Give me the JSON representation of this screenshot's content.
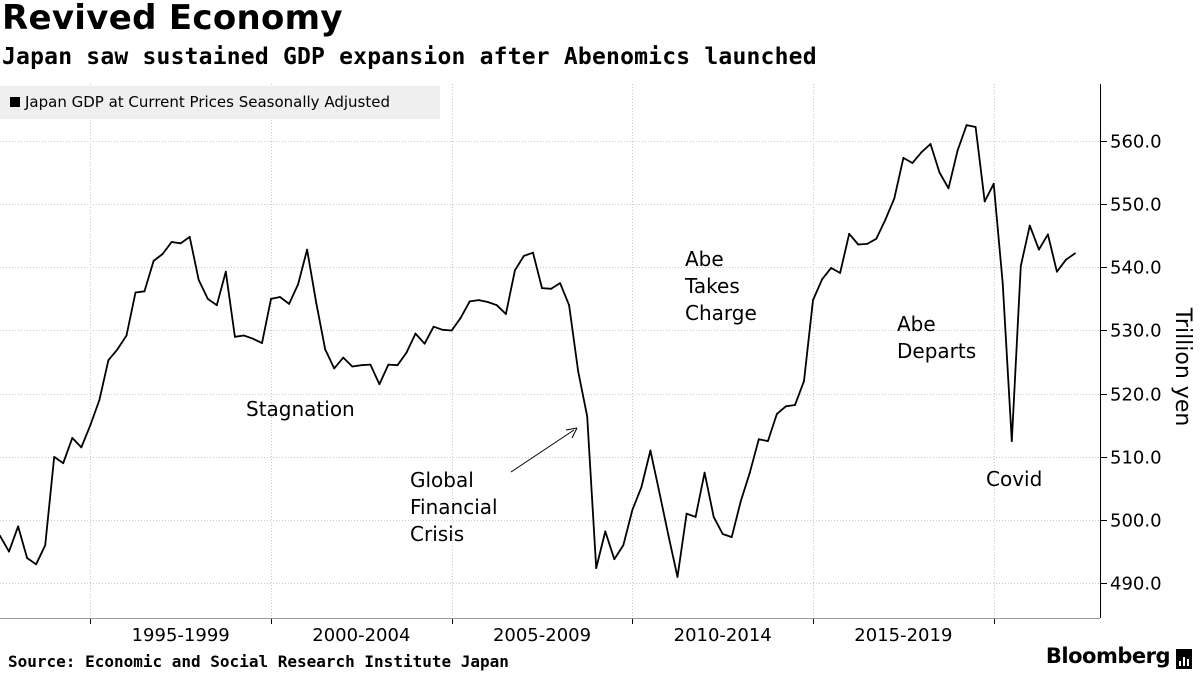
{
  "header": {
    "title": "Revived Economy",
    "subtitle": "Japan saw sustained GDP expansion after Abenomics launched"
  },
  "legend": {
    "label": "Japan GDP at Current Prices Seasonally Adjusted",
    "color": "#000000"
  },
  "footer": {
    "source": "Source: Economic and Social Research Institute Japan",
    "brand": "Bloomberg"
  },
  "chart_data": {
    "type": "line",
    "title": "Revived Economy",
    "subtitle": "Japan saw sustained GDP expansion after Abenomics launched",
    "ylabel": "Trillion yen",
    "xlabel": "",
    "ylim": [
      484.5,
      569.0
    ],
    "xlim": [
      0,
      119
    ],
    "y_ticks": [
      490.0,
      500.0,
      510.0,
      520.0,
      530.0,
      540.0,
      550.0,
      560.0
    ],
    "y_tick_labels": [
      "490.0",
      "500.0",
      "510.0",
      "520.0",
      "530.0",
      "540.0",
      "550.0",
      "560.0"
    ],
    "x_period_labels": [
      {
        "label": "1995-1999",
        "center": 20
      },
      {
        "label": "2000-2004",
        "center": 40
      },
      {
        "label": "2005-2009",
        "center": 60
      },
      {
        "label": "2010-2014",
        "center": 80
      },
      {
        "label": "2015-2019",
        "center": 100
      }
    ],
    "x_boundaries": [
      10,
      30,
      50,
      70,
      90,
      110
    ],
    "grid": true,
    "series": [
      {
        "name": "Japan GDP at Current Prices Seasonally Adjusted",
        "color": "#000000",
        "points": [
          [
            0,
            497.5
          ],
          [
            1,
            495.0
          ],
          [
            2,
            499.0
          ],
          [
            3,
            494.0
          ],
          [
            4,
            493.0
          ],
          [
            5,
            496.0
          ],
          [
            6,
            510.0
          ],
          [
            7,
            509.0
          ],
          [
            8,
            513.0
          ],
          [
            9,
            511.5
          ],
          [
            10,
            515.0
          ],
          [
            11,
            519.0
          ],
          [
            12,
            525.3
          ],
          [
            13,
            527.0
          ],
          [
            14,
            529.2
          ],
          [
            15,
            536.0
          ],
          [
            16,
            536.2
          ],
          [
            17,
            541.0
          ],
          [
            18,
            542.1
          ],
          [
            19,
            544.0
          ],
          [
            20,
            543.8
          ],
          [
            21,
            544.8
          ],
          [
            22,
            538.0
          ],
          [
            23,
            535.0
          ],
          [
            24,
            534.0
          ],
          [
            25,
            539.3
          ],
          [
            26,
            529.0
          ],
          [
            27,
            529.2
          ],
          [
            28,
            528.7
          ],
          [
            29,
            528.0
          ],
          [
            30,
            535.0
          ],
          [
            31,
            535.3
          ],
          [
            32,
            534.2
          ],
          [
            33,
            537.3
          ],
          [
            34,
            542.8
          ],
          [
            35,
            534.4
          ],
          [
            36,
            527.0
          ],
          [
            37,
            524.0
          ],
          [
            38,
            525.7
          ],
          [
            39,
            524.3
          ],
          [
            40,
            524.5
          ],
          [
            41,
            524.6
          ],
          [
            42,
            521.5
          ],
          [
            43,
            524.6
          ],
          [
            44,
            524.5
          ],
          [
            45,
            526.5
          ],
          [
            46,
            529.5
          ],
          [
            47,
            527.9
          ],
          [
            48,
            530.6
          ],
          [
            49,
            530.1
          ],
          [
            50,
            530.0
          ],
          [
            51,
            532.0
          ],
          [
            52,
            534.6
          ],
          [
            53,
            534.8
          ],
          [
            54,
            534.5
          ],
          [
            55,
            534.0
          ],
          [
            56,
            532.6
          ],
          [
            57,
            539.5
          ],
          [
            58,
            541.8
          ],
          [
            59,
            542.3
          ],
          [
            60,
            536.7
          ],
          [
            61,
            536.6
          ],
          [
            62,
            537.5
          ],
          [
            63,
            534.0
          ],
          [
            64,
            523.5
          ],
          [
            65,
            516.4
          ],
          [
            66,
            492.4
          ],
          [
            67,
            498.2
          ],
          [
            68,
            493.8
          ],
          [
            69,
            496.0
          ],
          [
            70,
            501.6
          ],
          [
            71,
            505.2
          ],
          [
            72,
            511.0
          ],
          [
            73,
            504.3
          ],
          [
            74,
            497.5
          ],
          [
            75,
            491.0
          ],
          [
            76,
            501.0
          ],
          [
            77,
            500.5
          ],
          [
            78,
            507.5
          ],
          [
            79,
            500.5
          ],
          [
            80,
            497.8
          ],
          [
            81,
            497.3
          ],
          [
            82,
            503.0
          ],
          [
            83,
            507.5
          ],
          [
            84,
            512.8
          ],
          [
            85,
            512.5
          ],
          [
            86,
            516.8
          ],
          [
            87,
            518.0
          ],
          [
            88,
            518.2
          ],
          [
            89,
            522.0
          ],
          [
            90,
            534.8
          ],
          [
            91,
            538.1
          ],
          [
            92,
            539.9
          ],
          [
            93,
            539.1
          ],
          [
            94,
            545.3
          ],
          [
            95,
            543.6
          ],
          [
            96,
            543.7
          ],
          [
            97,
            544.5
          ],
          [
            98,
            547.5
          ],
          [
            99,
            550.9
          ],
          [
            100,
            557.3
          ],
          [
            101,
            556.5
          ],
          [
            102,
            558.2
          ],
          [
            103,
            559.5
          ],
          [
            104,
            555.0
          ],
          [
            105,
            552.5
          ],
          [
            106,
            558.5
          ],
          [
            107,
            562.5
          ],
          [
            108,
            562.2
          ],
          [
            109,
            550.4
          ],
          [
            110,
            553.2
          ],
          [
            111,
            537.5
          ],
          [
            112,
            512.5
          ],
          [
            113,
            540.2
          ],
          [
            114,
            546.6
          ],
          [
            115,
            542.8
          ],
          [
            116,
            545.2
          ],
          [
            117,
            539.3
          ],
          [
            118,
            541.2
          ],
          [
            119,
            542.2
          ]
        ]
      }
    ],
    "annotations": [
      {
        "id": "stagnation",
        "lines": [
          "Stagnation"
        ]
      },
      {
        "id": "gfc",
        "lines": [
          "Global",
          "Financial",
          "Crisis"
        ]
      },
      {
        "id": "abe-takes-charge",
        "lines": [
          "Abe",
          "Takes",
          "Charge"
        ]
      },
      {
        "id": "abe-departs",
        "lines": [
          "Abe",
          "Departs"
        ]
      },
      {
        "id": "covid",
        "lines": [
          "Covid"
        ]
      }
    ]
  }
}
